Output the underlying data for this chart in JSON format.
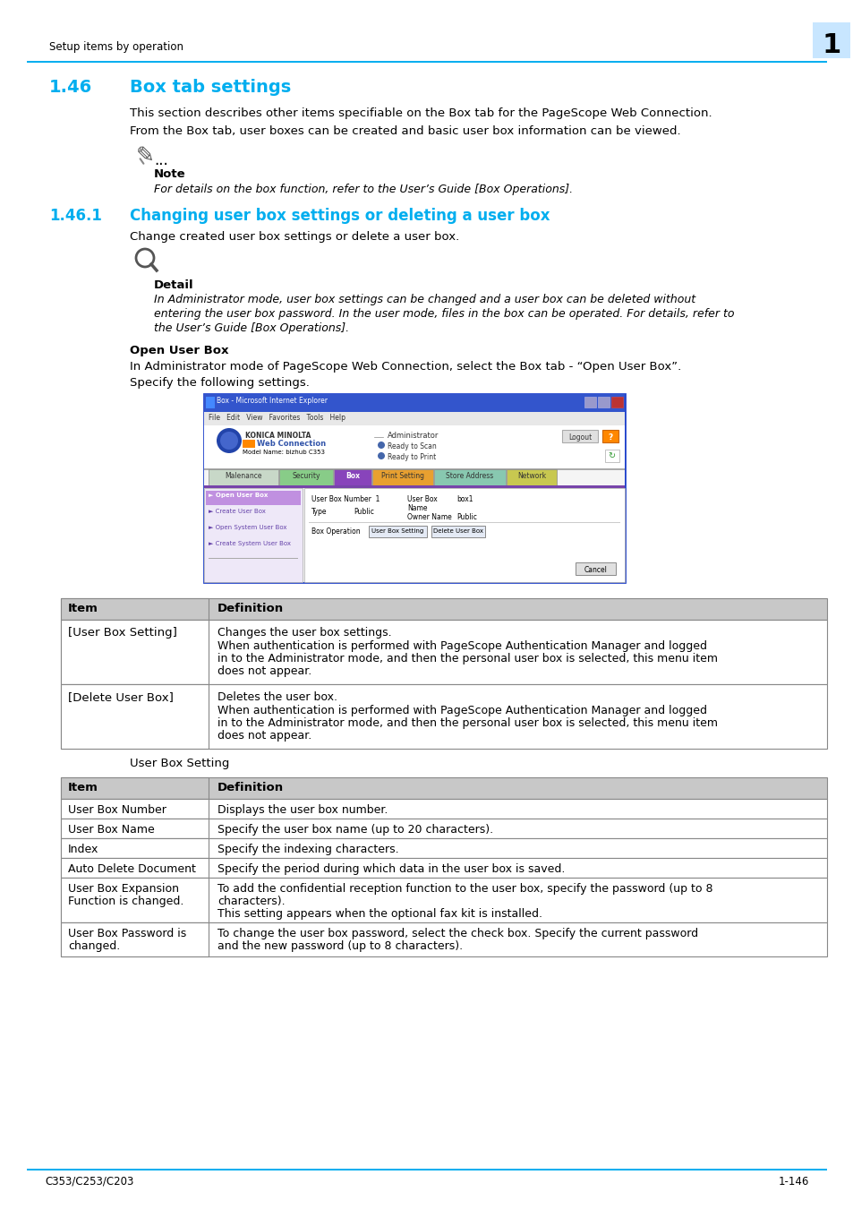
{
  "page_title_left": "Setup items by operation",
  "page_number": "1",
  "section_num": "1.46",
  "section_title": "Box tab settings",
  "section_body1": "This section describes other items specifiable on the Box tab for the PageScope Web Connection.",
  "section_body2": "From the Box tab, user boxes can be created and basic user box information can be viewed.",
  "note_label": "Note",
  "note_text": "For details on the box function, refer to the User’s Guide [Box Operations].",
  "subsection_num": "1.46.1",
  "subsection_title": "Changing user box settings or deleting a user box",
  "subsection_body": "Change created user box settings or delete a user box.",
  "detail_label": "Detail",
  "detail_text1": "In Administrator mode, user box settings can be changed and a user box can be deleted without",
  "detail_text2": "entering the user box password. In the user mode, files in the box can be operated. For details, refer to",
  "detail_text3": "the User’s Guide [Box Operations].",
  "open_user_box_label": "Open User Box",
  "open_user_box_body1": "In Administrator mode of PageScope Web Connection, select the Box tab - “Open User Box”.",
  "open_user_box_body2": "Specify the following settings.",
  "table1_headers": [
    "Item",
    "Definition"
  ],
  "table1_rows": [
    [
      "[User Box Setting]",
      "Changes the user box settings.\nWhen authentication is performed with PageScope Authentication Manager and logged\nin to the Administrator mode, and then the personal user box is selected, this menu item\ndoes not appear."
    ],
    [
      "[Delete User Box]",
      "Deletes the user box.\nWhen authentication is performed with PageScope Authentication Manager and logged\nin to the Administrator mode, and then the personal user box is selected, this menu item\ndoes not appear."
    ]
  ],
  "user_box_setting_label": "User Box Setting",
  "table2_headers": [
    "Item",
    "Definition"
  ],
  "table2_rows": [
    [
      "User Box Number",
      "Displays the user box number."
    ],
    [
      "User Box Name",
      "Specify the user box name (up to 20 characters)."
    ],
    [
      "Index",
      "Specify the indexing characters."
    ],
    [
      "Auto Delete Document",
      "Specify the period during which data in the user box is saved."
    ],
    [
      "User Box Expansion\nFunction is changed.",
      "To add the confidential reception function to the user box, specify the password (up to 8\ncharacters).\nThis setting appears when the optional fax kit is installed."
    ],
    [
      "User Box Password is\nchanged.",
      "To change the user box password, select the check box. Specify the current password\nand the new password (up to 8 characters)."
    ]
  ],
  "footer_left": "C353/C253/C203",
  "footer_right": "1-146",
  "cyan": "#00AEEF",
  "black": "#000000",
  "light_blue_bg": "#C8E6FF",
  "white": "#FFFFFF",
  "tab_colors": [
    "#C8C8C8",
    "#90D090",
    "#9060C0",
    "#F0A830",
    "#90D8B0",
    "#D8D870"
  ],
  "sidebar_selected_color": "#C090D8",
  "sidebar_unselected_color": "#E0C8F0",
  "browser_blue": "#2244CC",
  "browser_title_blue": "#3355DD"
}
